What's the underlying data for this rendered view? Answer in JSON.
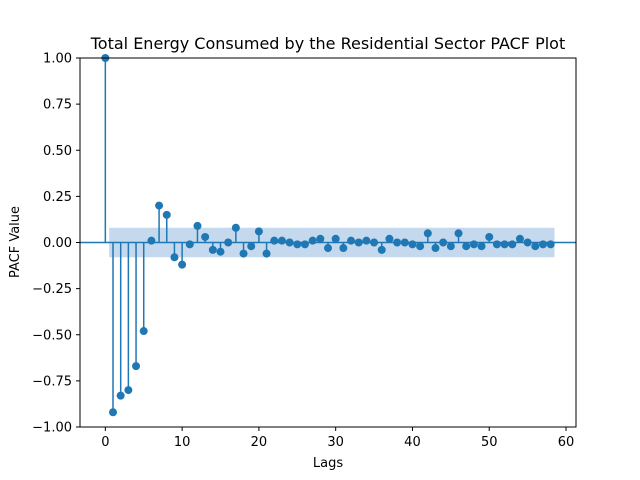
{
  "chart_data": {
    "type": "stem",
    "title": "Total Energy Consumed by the Residential Sector PACF Plot",
    "xlabel": "Lags",
    "ylabel": "PACF Value",
    "xlim": [
      -3.3,
      61.3
    ],
    "ylim": [
      -1.0,
      1.0
    ],
    "xticks": [
      "0",
      "10",
      "20",
      "30",
      "40",
      "50",
      "60"
    ],
    "yticks": [
      "−1.00",
      "−0.75",
      "−0.50",
      "−0.25",
      "0.00",
      "0.25",
      "0.50",
      "0.75",
      "1.00"
    ],
    "confidence_band": {
      "x_range": [
        0.5,
        58.5
      ],
      "lower": -0.08,
      "upper": 0.08
    },
    "lags": [
      0,
      1,
      2,
      3,
      4,
      5,
      6,
      7,
      8,
      9,
      10,
      11,
      12,
      13,
      14,
      15,
      16,
      17,
      18,
      19,
      20,
      21,
      22,
      23,
      24,
      25,
      26,
      27,
      28,
      29,
      30,
      31,
      32,
      33,
      34,
      35,
      36,
      37,
      38,
      39,
      40,
      41,
      42,
      43,
      44,
      45,
      46,
      47,
      48,
      49,
      50,
      51,
      52,
      53,
      54,
      55,
      56,
      57,
      58
    ],
    "values": [
      1.0,
      -0.92,
      -0.83,
      -0.8,
      -0.67,
      -0.48,
      0.01,
      0.2,
      0.15,
      -0.08,
      -0.12,
      -0.01,
      0.09,
      0.03,
      -0.04,
      -0.05,
      0.0,
      0.08,
      -0.06,
      -0.02,
      0.06,
      -0.06,
      0.01,
      0.01,
      0.0,
      -0.01,
      -0.01,
      0.01,
      0.02,
      -0.03,
      0.02,
      -0.03,
      0.01,
      0.0,
      0.01,
      0.0,
      -0.04,
      0.02,
      0.0,
      0.0,
      -0.01,
      -0.02,
      0.05,
      -0.03,
      0.0,
      -0.02,
      0.05,
      -0.02,
      -0.01,
      -0.02,
      0.03,
      -0.01,
      -0.01,
      -0.01,
      0.02,
      0.0,
      -0.02,
      -0.01,
      -0.01
    ],
    "colors": {
      "stem": "#1f77b4",
      "band": "#c5d9ee",
      "zero_line": "#1f77b4"
    },
    "grid": false,
    "legend": "none"
  }
}
